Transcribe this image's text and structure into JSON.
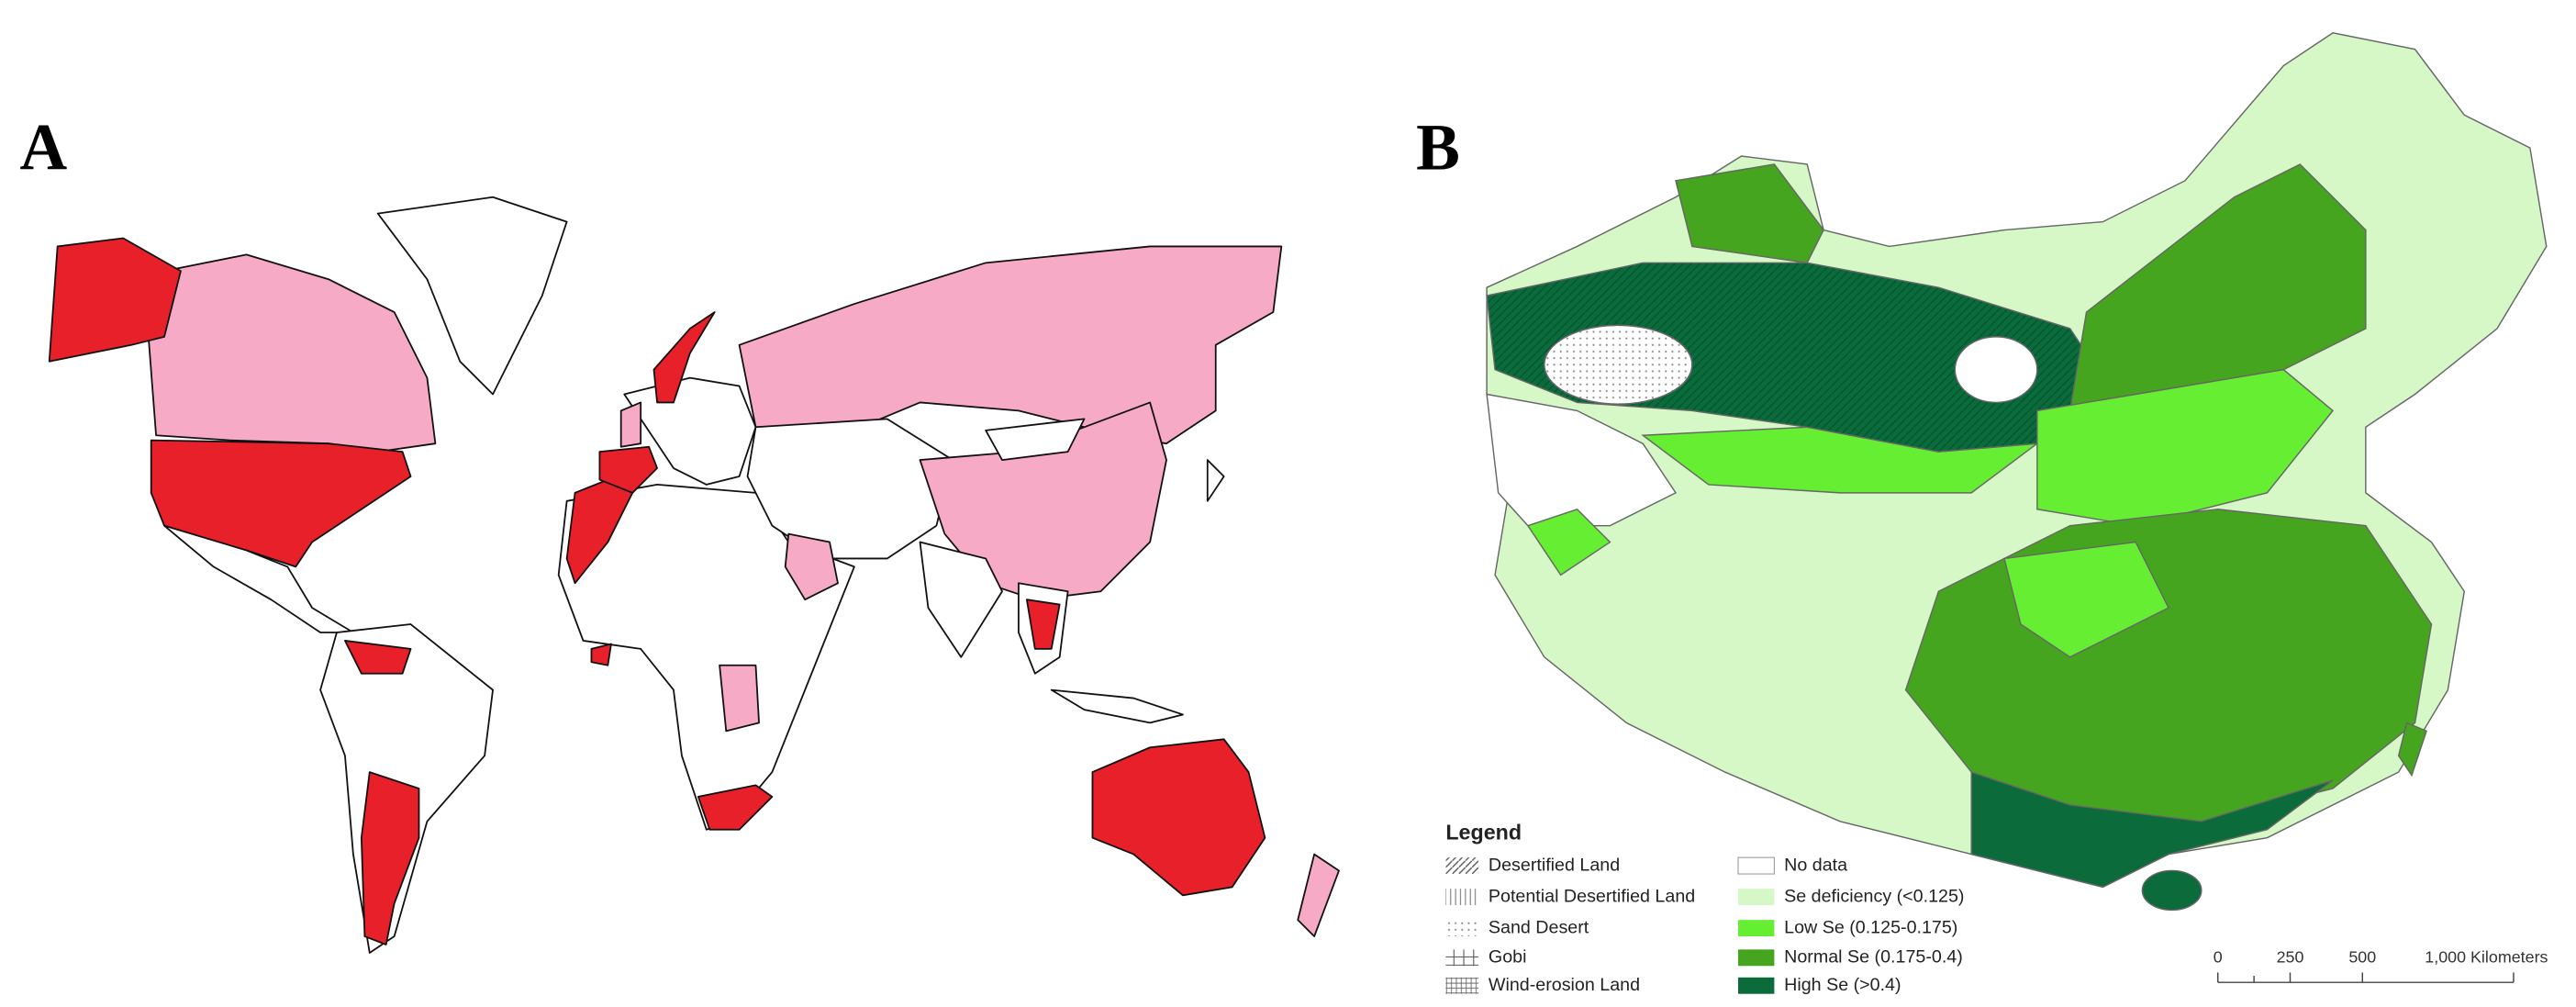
{
  "panels": [
    {
      "label": "A"
    },
    {
      "label": "B"
    }
  ],
  "legend": {
    "title": "Legend",
    "land_types": [
      "Desertified Land",
      "Potential Desertified Land",
      "Sand Desert",
      "Gobi",
      "Wind-erosion Land"
    ],
    "selenium_levels": [
      "No data",
      "Se deficiency (<0.125)",
      "Low Se (0.125-0.175)",
      "Normal Se (0.175-0.4)",
      "High Se (>0.4)"
    ]
  },
  "scale_bar": {
    "ticks": [
      "0",
      "250",
      "500"
    ],
    "unit_label": "1,000 Kilometers"
  }
}
